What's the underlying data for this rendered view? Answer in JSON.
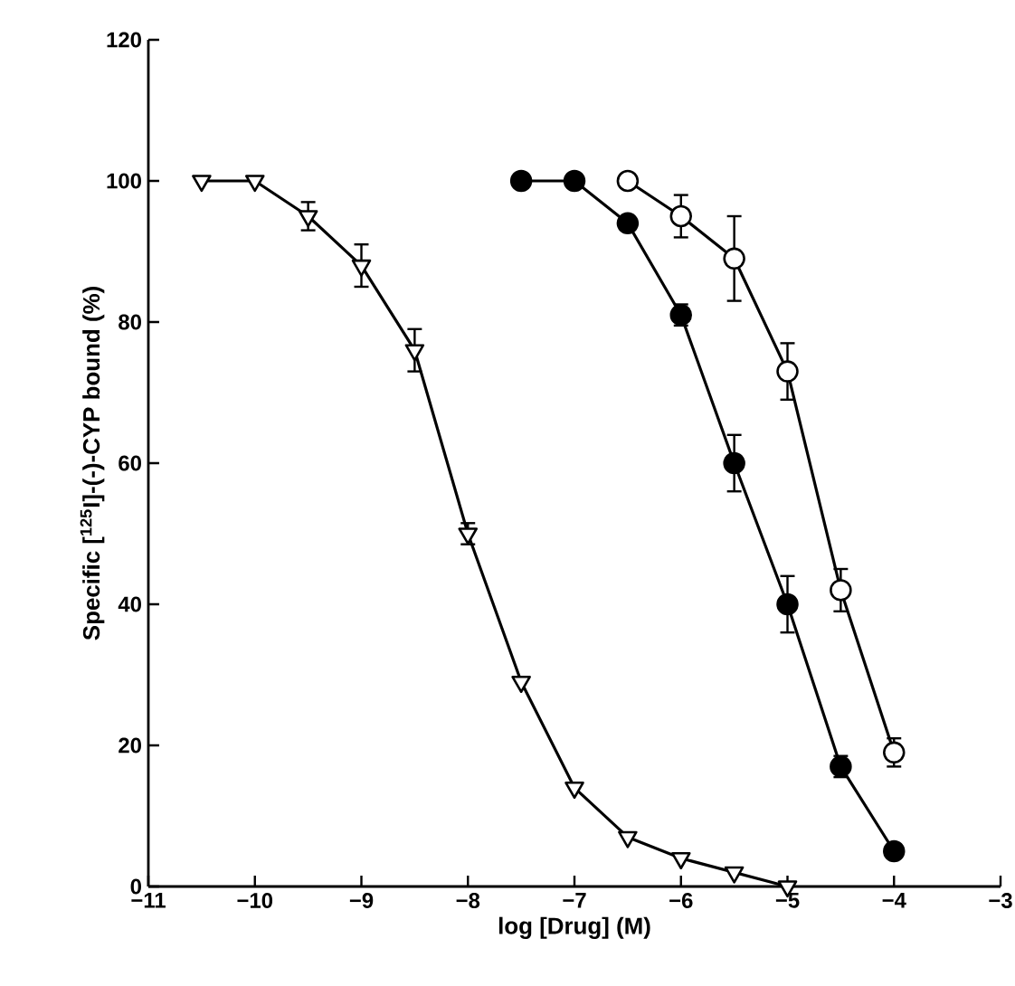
{
  "chart_data": {
    "type": "line",
    "xlabel": "log [Drug] (M)",
    "ylabel": "Specific [$^{125}$I]-(-)-CYP bound (%)",
    "xlim": [
      -11,
      -3
    ],
    "ylim": [
      0,
      120
    ],
    "xticks": [
      {
        "value": -11,
        "label": "−11"
      },
      {
        "value": -10,
        "label": "−10"
      },
      {
        "value": -9,
        "label": "−9"
      },
      {
        "value": -8,
        "label": "−8"
      },
      {
        "value": -7,
        "label": "−7"
      },
      {
        "value": -6,
        "label": "−6"
      },
      {
        "value": -5,
        "label": "−5"
      },
      {
        "value": -4,
        "label": "−4"
      },
      {
        "value": -3,
        "label": "−3"
      }
    ],
    "yticks": [
      0,
      20,
      40,
      60,
      80,
      100,
      120
    ],
    "grid": false,
    "series": [
      {
        "color": "#ffffff",
        "marker": "triangle",
        "x": [
          -10.5,
          -10,
          -9.5,
          -9,
          -8.5,
          -8,
          -7.5,
          -7,
          -6.5,
          -6,
          -5.5,
          -5
        ],
        "values": [
          100,
          100,
          95,
          88,
          76,
          50,
          29,
          14,
          7,
          4,
          2,
          0
        ],
        "errors": [
          null,
          null,
          2,
          3,
          3,
          1.5,
          null,
          null,
          null,
          null,
          null,
          null
        ]
      },
      {
        "color": "#000000",
        "marker": "circle",
        "x": [
          -7.5,
          -7,
          -6.5,
          -6,
          -5.5,
          -5,
          -4.5,
          -4
        ],
        "values": [
          100,
          100,
          94,
          81,
          60,
          40,
          17,
          5
        ],
        "errors": [
          null,
          null,
          null,
          1.5,
          4,
          4,
          1.5,
          null
        ]
      },
      {
        "color": "#ffffff",
        "marker": "circle",
        "x": [
          -6.5,
          -6,
          -5.5,
          -5,
          -4.5,
          -4
        ],
        "values": [
          100,
          95,
          89,
          73,
          42,
          19
        ],
        "errors": [
          null,
          3,
          6,
          4,
          3,
          2
        ]
      }
    ]
  }
}
